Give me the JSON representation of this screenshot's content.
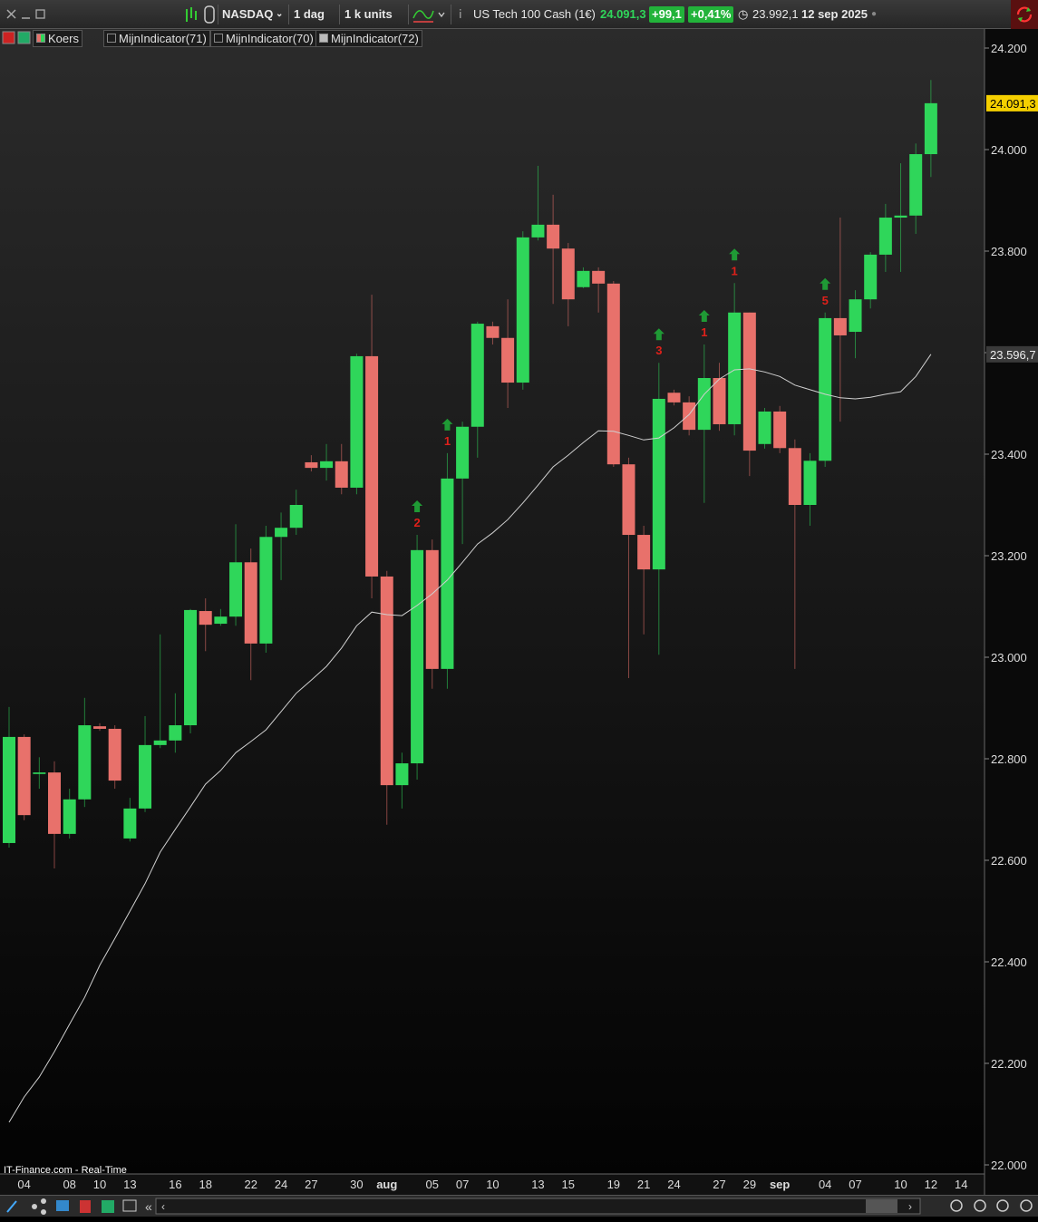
{
  "toolbar": {
    "symbol": "NASDAQ",
    "period": "1 dag",
    "units": "1 k units",
    "instrument": "US Tech 100 Cash (1€)",
    "price": "24.091,3",
    "change": "+99,1",
    "change_pct": "+0,41%",
    "prev": "23.992,1",
    "date": "12 sep 2025"
  },
  "legend_bar": {
    "items": [
      "Koers",
      "MijnIndicator(71)",
      "MijnIndicator(70)",
      "MijnIndicator(72)"
    ]
  },
  "footer": {
    "source": "IT-Finance.com - Real-Time"
  },
  "chart_data": {
    "type": "candlestick",
    "categories": [
      null,
      "04",
      null,
      null,
      "08",
      null,
      "10",
      null,
      "13",
      null,
      null,
      "16",
      null,
      "18",
      null,
      null,
      "22",
      null,
      "24",
      null,
      "27",
      null,
      null,
      "30",
      null,
      "aug",
      null,
      null,
      "05",
      null,
      "07",
      null,
      "10",
      null,
      null,
      "13",
      null,
      "15",
      null,
      null,
      "19",
      null,
      "21",
      null,
      "24",
      null,
      null,
      "27",
      null,
      "29",
      null,
      "sep",
      null,
      null,
      "04",
      null,
      "07",
      null,
      null,
      "10",
      null,
      "12",
      null,
      "14"
    ],
    "open": [
      22634,
      22843,
      22770,
      22773,
      22652,
      22720,
      22864,
      22859,
      22643,
      22702,
      22827,
      22836,
      22866,
      23091,
      23066,
      23080,
      23187,
      23027,
      23237,
      23255,
      23384,
      23373,
      23386,
      23334,
      23593,
      23159,
      22748,
      22791,
      23211,
      22977,
      23352,
      23454,
      23652,
      23629,
      23541,
      23827,
      23852,
      23805,
      23729,
      23761,
      23736,
      23380,
      23241,
      23173,
      23521,
      23502,
      23448,
      23550,
      23459,
      23679,
      23420,
      23484,
      23412,
      23300,
      23387,
      23668,
      23641,
      23705,
      23793,
      23866,
      23870,
      23991,
      null,
      null
    ],
    "high": [
      22902,
      22848,
      22803,
      22795,
      22741,
      22920,
      22870,
      22866,
      22723,
      22884,
      23045,
      22929,
      23095,
      23116,
      23095,
      23262,
      23214,
      23259,
      23285,
      23330,
      23398,
      23420,
      23420,
      23598,
      23714,
      23170,
      22812,
      23241,
      23232,
      23402,
      23464,
      23661,
      23661,
      23705,
      23839,
      23968,
      23911,
      23816,
      23768,
      23768,
      23741,
      23393,
      23259,
      23580,
      23527,
      23514,
      23616,
      23580,
      23737,
      23679,
      23491,
      23495,
      23429,
      23402,
      23679,
      23866,
      23723,
      23798,
      23893,
      23973,
      24012,
      24137,
      null,
      null
    ],
    "low": [
      22625,
      22679,
      22741,
      22584,
      22643,
      22705,
      22855,
      22741,
      22637,
      22695,
      22821,
      22812,
      22850,
      23012,
      23062,
      23062,
      22955,
      23009,
      23152,
      23241,
      23366,
      23348,
      23321,
      23321,
      23116,
      22670,
      22702,
      22759,
      22938,
      22938,
      23223,
      23393,
      23616,
      23491,
      23527,
      23821,
      23696,
      23652,
      23727,
      23679,
      23375,
      22959,
      23045,
      23005,
      23496,
      23437,
      23304,
      23446,
      23437,
      23357,
      23411,
      23402,
      22977,
      23259,
      23375,
      23464,
      23589,
      23687,
      23759,
      23759,
      23834,
      23946,
      null,
      null
    ],
    "close": [
      22843,
      22689,
      22773,
      22652,
      22720,
      22866,
      22859,
      22757,
      22702,
      22827,
      22836,
      22866,
      23093,
      23064,
      23080,
      23187,
      23027,
      23237,
      23255,
      23300,
      23373,
      23386,
      23334,
      23593,
      23159,
      22748,
      22791,
      23211,
      22977,
      23352,
      23454,
      23657,
      23629,
      23541,
      23827,
      23852,
      23805,
      23705,
      23761,
      23736,
      23380,
      23241,
      23173,
      23509,
      23502,
      23448,
      23550,
      23459,
      23679,
      23407,
      23484,
      23412,
      23300,
      23387,
      23668,
      23634,
      23705,
      23793,
      23866,
      23870,
      23991,
      24091.3,
      null,
      null
    ],
    "up_color": "#2fd65a",
    "down_color": "#e8716b",
    "ma": {
      "color": "#d0d0d0",
      "values": [
        22084,
        22134,
        22173,
        22223,
        22277,
        22330,
        22393,
        22446,
        22500,
        22554,
        22616,
        22661,
        22705,
        22750,
        22777,
        22812,
        22834,
        22857,
        22893,
        22929,
        22955,
        22982,
        23018,
        23062,
        23089,
        23084,
        23082,
        23102,
        23125,
        23152,
        23187,
        23223,
        23245,
        23271,
        23304,
        23339,
        23375,
        23398,
        23423,
        23446,
        23445,
        23437,
        23428,
        23432,
        23452,
        23478,
        23518,
        23548,
        23566,
        23568,
        23562,
        23553,
        23536,
        23527,
        23518,
        23511,
        23509,
        23512,
        23518,
        23523,
        23553,
        23596.7,
        null,
        null
      ]
    },
    "signals": [
      {
        "index": 27,
        "label": 2
      },
      {
        "index": 29,
        "label": 1
      },
      {
        "index": 43,
        "label": 3
      },
      {
        "index": 46,
        "label": 1
      },
      {
        "index": 48,
        "label": 1
      },
      {
        "index": 54,
        "label": 5
      }
    ],
    "signal_color": "#e0201a",
    "arrow_color": "#1f9a35",
    "price_markers": [
      {
        "value": 24091.3,
        "label": "24.091,3",
        "color": "#f5cf00"
      },
      {
        "value": 23596.7,
        "label": "23.596,7",
        "color": "#3a3a3a"
      }
    ],
    "ylim": [
      22000,
      24200
    ],
    "yticks": [
      {
        "value": 22000,
        "label": "22.000"
      },
      {
        "value": 22200,
        "label": "22.200"
      },
      {
        "value": 22400,
        "label": "22.400"
      },
      {
        "value": 22600,
        "label": "22.600"
      },
      {
        "value": 22800,
        "label": "22.800"
      },
      {
        "value": 23000,
        "label": "23.000"
      },
      {
        "value": 23200,
        "label": "23.200"
      },
      {
        "value": 23400,
        "label": "23.400"
      },
      {
        "value": 23600,
        "label": "23.600"
      },
      {
        "value": 23800,
        "label": "23.800"
      },
      {
        "value": 24000,
        "label": "24.000"
      },
      {
        "value": 24200,
        "label": "24.200"
      }
    ],
    "grid": false
  }
}
